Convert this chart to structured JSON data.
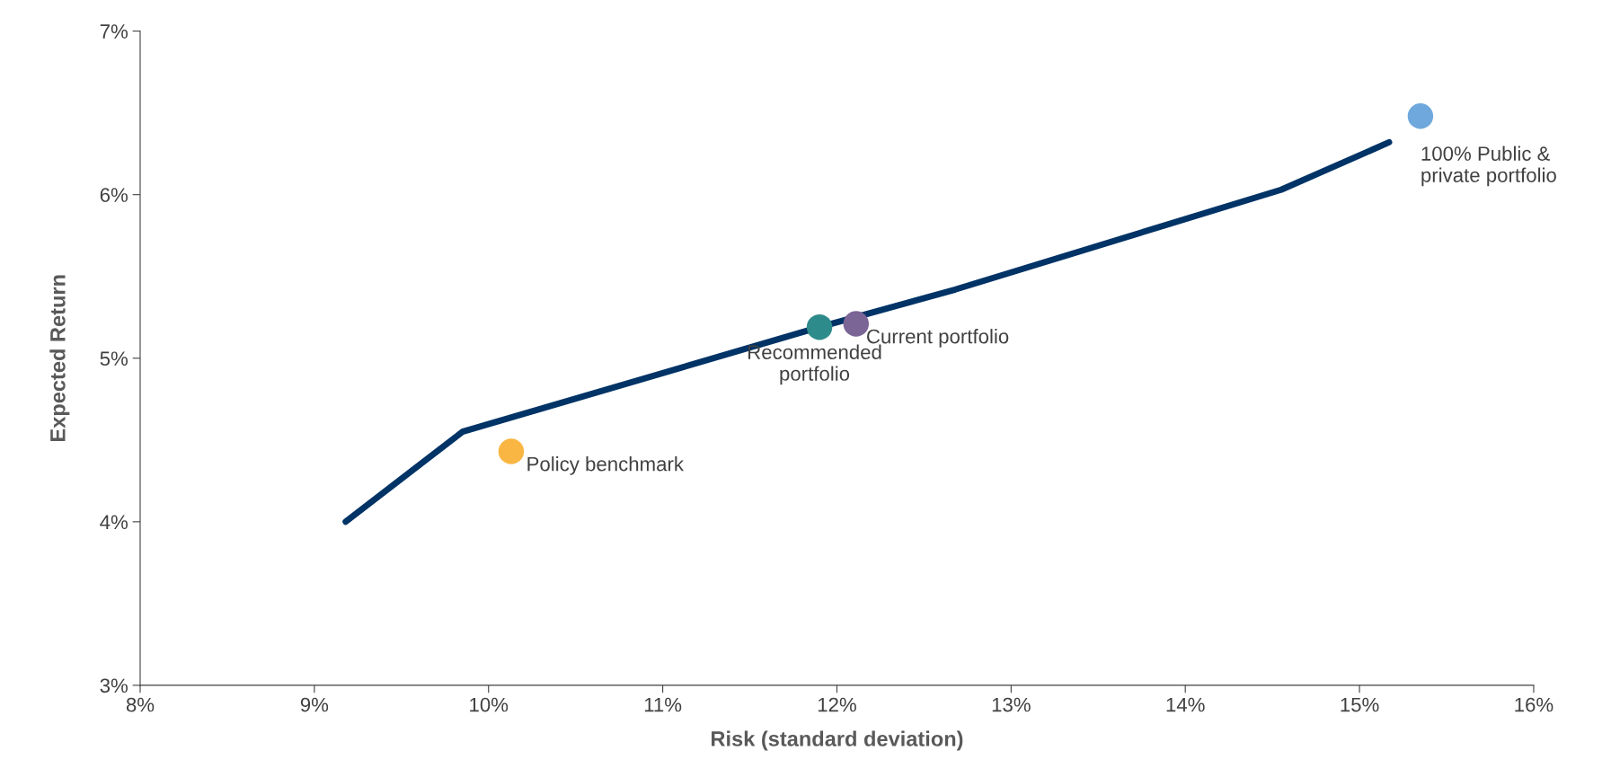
{
  "chart_data": {
    "type": "scatter",
    "xlabel": "Risk (standard deviation)",
    "ylabel": "Expected Return",
    "xlim": [
      8,
      16
    ],
    "xticks": [
      {
        "value": 8,
        "label": "8%"
      },
      {
        "value": 9,
        "label": "9%"
      },
      {
        "value": 10,
        "label": "10%"
      },
      {
        "value": 11,
        "label": "11%"
      },
      {
        "value": 12,
        "label": "12%"
      },
      {
        "value": 13,
        "label": "13%"
      },
      {
        "value": 14,
        "label": "14%"
      },
      {
        "value": 15,
        "label": "15%"
      },
      {
        "value": 16,
        "label": "16%"
      }
    ],
    "ylim": [
      3,
      7
    ],
    "yticks": [
      {
        "value": 3,
        "label": "3%"
      },
      {
        "value": 4,
        "label": "4%"
      },
      {
        "value": 5,
        "label": "5%"
      },
      {
        "value": 6,
        "label": "6%"
      },
      {
        "value": 7,
        "label": "7%"
      }
    ],
    "grid": false,
    "legend": false,
    "marker": "circle",
    "series": [
      {
        "type": "line",
        "marker": "none",
        "color": "#003366",
        "x": [
          9.18,
          9.85,
          11.9,
          12.68,
          14.55,
          15.17
        ],
        "values": [
          4.0,
          4.55,
          5.19,
          5.42,
          6.03,
          6.32
        ]
      },
      {
        "name": "Policy benchmark",
        "color": "#f9b642",
        "x": [
          10.13
        ],
        "values": [
          4.43
        ]
      },
      {
        "name": "Recommended\nportfolio",
        "color": "#2e8b8b",
        "x": [
          11.9
        ],
        "values": [
          5.19
        ]
      },
      {
        "name": "Current portfolio",
        "color": "#7b6596",
        "x": [
          12.11
        ],
        "values": [
          5.21
        ]
      },
      {
        "name": "100% Public &\nprivate portfolio",
        "color": "#6fa8dc",
        "x": [
          15.35
        ],
        "values": [
          6.48
        ]
      }
    ]
  }
}
